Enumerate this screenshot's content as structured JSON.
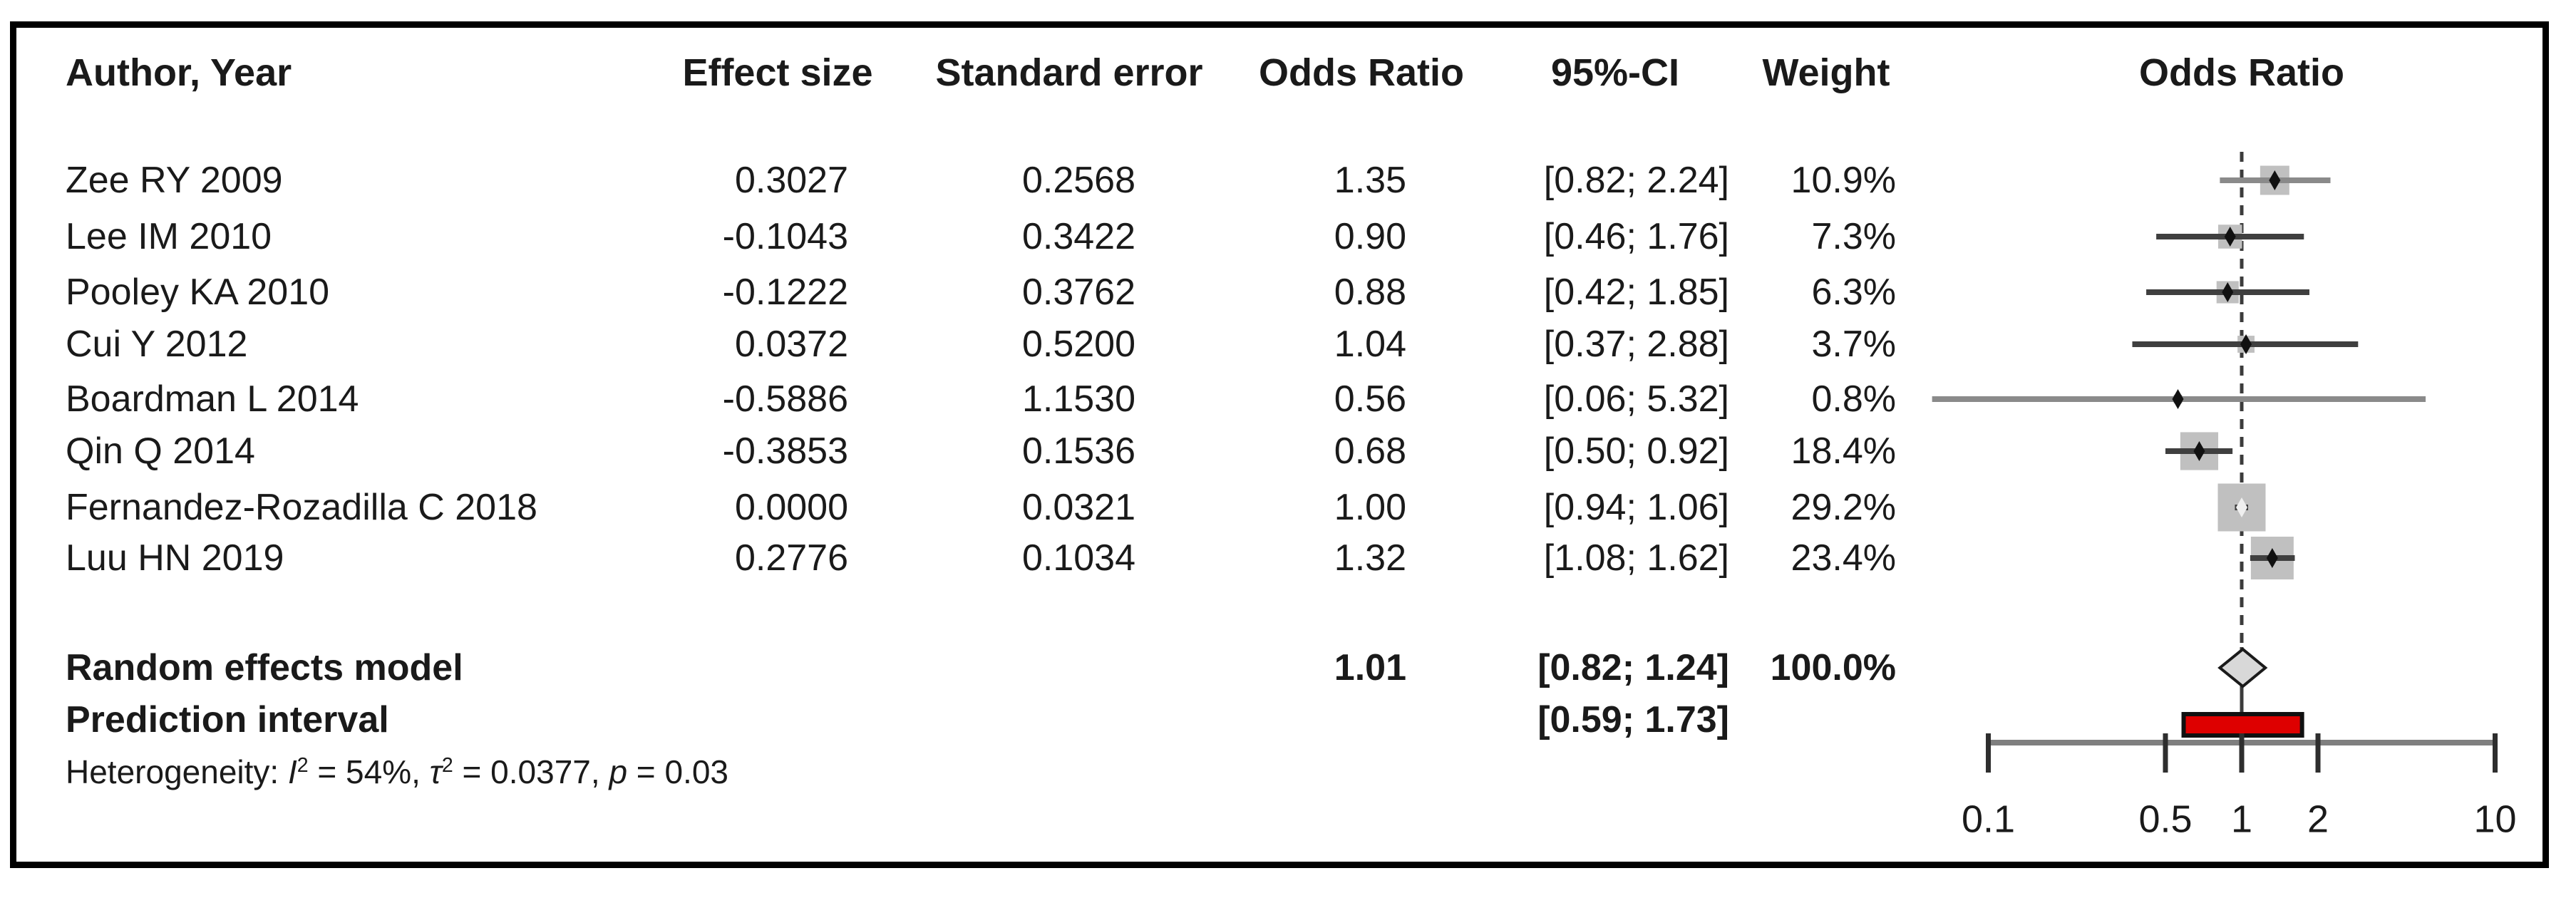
{
  "table": {
    "columns": [
      "Author, Year",
      "Effect size",
      "Standard error",
      "Odds Ratio",
      "95%-CI",
      "Weight"
    ],
    "studies": [
      {
        "author": "Zee RY 2009",
        "effect_size": "0.3027",
        "standard_error": "0.2568",
        "odds_ratio": "1.35",
        "ci": "[0.82; 2.24]",
        "weight": "10.9%"
      },
      {
        "author": "Lee IM 2010",
        "effect_size": "-0.1043",
        "standard_error": "0.3422",
        "odds_ratio": "0.90",
        "ci": "[0.46; 1.76]",
        "weight": "7.3%"
      },
      {
        "author": "Pooley KA 2010",
        "effect_size": "-0.1222",
        "standard_error": "0.3762",
        "odds_ratio": "0.88",
        "ci": "[0.42; 1.85]",
        "weight": "6.3%"
      },
      {
        "author": "Cui Y 2012",
        "effect_size": "0.0372",
        "standard_error": "0.5200",
        "odds_ratio": "1.04",
        "ci": "[0.37; 2.88]",
        "weight": "3.7%"
      },
      {
        "author": "Boardman L 2014",
        "effect_size": "-0.5886",
        "standard_error": "1.1530",
        "odds_ratio": "0.56",
        "ci": "[0.06; 5.32]",
        "weight": "0.8%"
      },
      {
        "author": "Qin Q 2014",
        "effect_size": "-0.3853",
        "standard_error": "0.1536",
        "odds_ratio": "0.68",
        "ci": "[0.50; 0.92]",
        "weight": "18.4%"
      },
      {
        "author": "Fernandez-Rozadilla C 2018",
        "effect_size": "0.0000",
        "standard_error": "0.0321",
        "odds_ratio": "1.00",
        "ci": "[0.94; 1.06]",
        "weight": "29.2%"
      },
      {
        "author": "Luu HN 2019",
        "effect_size": "0.2776",
        "standard_error": "0.1034",
        "odds_ratio": "1.32",
        "ci": "[1.08; 1.62]",
        "weight": "23.4%"
      }
    ],
    "summary_rows": [
      {
        "label": "Random effects model",
        "odds_ratio": "1.01",
        "ci": "[0.82; 1.24]",
        "weight": "100.0%"
      },
      {
        "label": "Prediction interval",
        "ci": "[0.59; 1.73]"
      }
    ],
    "heterogeneity_segments": [
      {
        "t": "Heterogeneity: "
      },
      {
        "t": "I",
        "i": true
      },
      {
        "t": "2",
        "sup": true
      },
      {
        "t": " = 54%, "
      },
      {
        "t": "τ",
        "i": true
      },
      {
        "t": "2",
        "sup": true
      },
      {
        "t": " = 0.0377, "
      },
      {
        "t": "p",
        "i": true
      },
      {
        "t": " = 0.03"
      }
    ]
  },
  "plot": {
    "title": "Odds Ratio",
    "axis_ticks": [
      "0.1",
      "0.5",
      "1",
      "2",
      "10"
    ]
  },
  "colors": {
    "background": "#ffffff",
    "border": "#000000",
    "text": "#1a1a1a",
    "ci_line_dark": "#3f3f3f",
    "ci_line_light": "#8a8a8a",
    "square_fill": "#c0c0c0",
    "point_dark": "#111111",
    "point_light": "#efefef",
    "diamond_fill": "#d8d8d8",
    "diamond_stroke": "#1a1a1a",
    "prediction_fill": "#de0000",
    "prediction_stroke": "#101010",
    "axis_line": "#7f7f7f",
    "tick": "#2e2e2e",
    "ref_line": "#3c3c3c"
  },
  "chart_data": {
    "type": "forest",
    "title": "Odds Ratio",
    "x_scale": "log10",
    "x_range": [
      0.1,
      10
    ],
    "x_ticks": [
      0.1,
      0.5,
      1,
      2,
      10
    ],
    "ref_line": 1,
    "studies": [
      {
        "label": "Zee RY 2009",
        "or": 1.35,
        "low": 0.82,
        "high": 2.24,
        "weight_pct": 10.9,
        "line_shade": "light",
        "point_light": false
      },
      {
        "label": "Lee IM 2010",
        "or": 0.9,
        "low": 0.46,
        "high": 1.76,
        "weight_pct": 7.3,
        "line_shade": "dark",
        "point_light": false
      },
      {
        "label": "Pooley KA 2010",
        "or": 0.88,
        "low": 0.42,
        "high": 1.85,
        "weight_pct": 6.3,
        "line_shade": "dark",
        "point_light": false
      },
      {
        "label": "Cui Y 2012",
        "or": 1.04,
        "low": 0.37,
        "high": 2.88,
        "weight_pct": 3.7,
        "line_shade": "dark",
        "point_light": false
      },
      {
        "label": "Boardman L 2014",
        "or": 0.56,
        "low": 0.06,
        "high": 5.32,
        "weight_pct": 0.8,
        "line_shade": "light",
        "point_light": false
      },
      {
        "label": "Qin Q 2014",
        "or": 0.68,
        "low": 0.5,
        "high": 0.92,
        "weight_pct": 18.4,
        "line_shade": "dark",
        "point_light": false
      },
      {
        "label": "Fernandez-Rozadilla C 2018",
        "or": 1.0,
        "low": 0.94,
        "high": 1.06,
        "weight_pct": 29.2,
        "line_shade": "dark",
        "point_light": true
      },
      {
        "label": "Luu HN 2019",
        "or": 1.32,
        "low": 1.08,
        "high": 1.62,
        "weight_pct": 23.4,
        "line_shade": "dark",
        "point_light": false
      }
    ],
    "summary": {
      "label": "Random effects model",
      "or": 1.01,
      "low": 0.82,
      "high": 1.24,
      "weight_pct": 100.0
    },
    "prediction_interval": {
      "label": "Prediction interval",
      "low": 0.59,
      "high": 1.73
    },
    "heterogeneity": {
      "I2": "54%",
      "tau2": "0.0377",
      "p": "0.03"
    }
  }
}
